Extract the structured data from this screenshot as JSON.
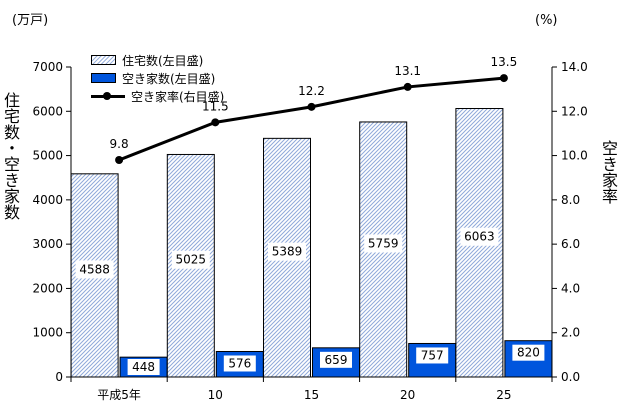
{
  "chart_data": {
    "type": "bar",
    "categories": [
      "平成5年",
      "10",
      "15",
      "20",
      "25"
    ],
    "series": [
      {
        "name": "住宅数(左目盛)",
        "kind": "bar",
        "style": "hatched",
        "color": "#9cb3df",
        "values": [
          4588,
          5025,
          5389,
          5759,
          6063
        ]
      },
      {
        "name": "空き家数(左目盛)",
        "kind": "bar",
        "style": "solid",
        "color": "#0055dd",
        "values": [
          448,
          576,
          659,
          757,
          820
        ]
      },
      {
        "name": "空き家率(右目盛)",
        "kind": "line",
        "color": "#000000",
        "values": [
          9.8,
          11.5,
          12.2,
          13.1,
          13.5
        ]
      }
    ],
    "value_labels": [
      [
        "4588",
        "5025",
        "5389",
        "5759",
        "6063"
      ],
      [
        "448",
        "576",
        "659",
        "757",
        "820"
      ],
      [
        "9.8",
        "11.5",
        "12.2",
        "13.1",
        "13.5"
      ]
    ],
    "ylim": [
      0,
      7000
    ],
    "y2lim": [
      0,
      14
    ],
    "yticks": [
      "0",
      "1000",
      "2000",
      "3000",
      "4000",
      "5000",
      "6000",
      "7000"
    ],
    "y2ticks": [
      "0.0",
      "2.0",
      "4.0",
      "6.0",
      "8.0",
      "10.0",
      "12.0",
      "14.0"
    ],
    "ylabel": "住宅数・空き家数",
    "y2label": "空き家率",
    "yunit": "(万戸)",
    "y2unit": "(%)",
    "legend_position": "top-left",
    "grid": false
  }
}
